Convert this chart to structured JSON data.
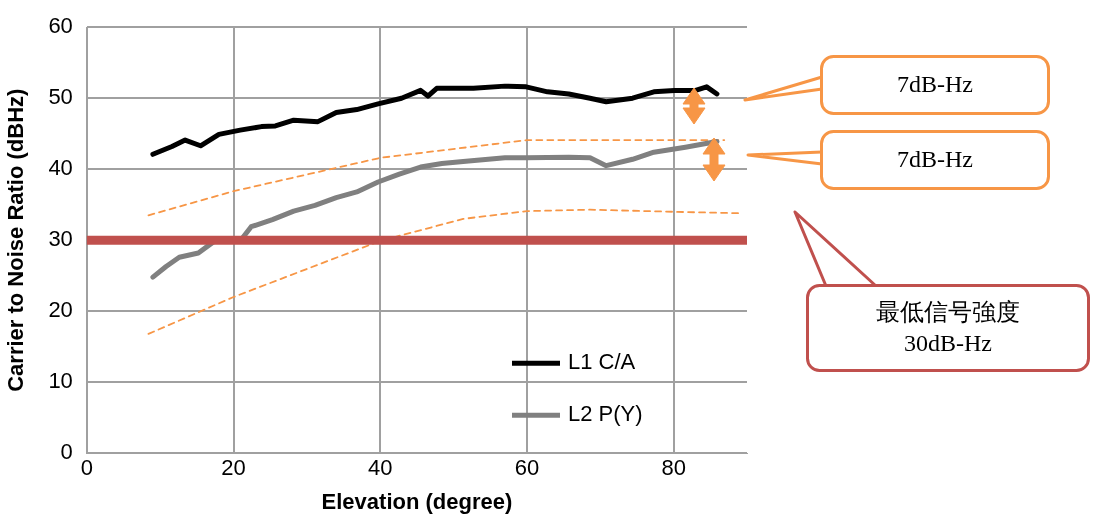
{
  "chart_data": {
    "type": "line",
    "xlabel": "Elevation (degree)",
    "ylabel": "Carrier to Noise Ratio (dBHz)",
    "xlim": [
      0,
      90
    ],
    "xticks": [
      0,
      20,
      40,
      60,
      80
    ],
    "ylim": [
      0,
      60
    ],
    "yticks": [
      0,
      10,
      20,
      30,
      40,
      50,
      60
    ],
    "grid": true,
    "legend": "bottom right",
    "marker": "none",
    "series": [
      {
        "name": "L1 C/A",
        "color": "#000000",
        "x": [
          9,
          11.6,
          13.4,
          15.5,
          18,
          20.9,
          23.8,
          25.7,
          28.2,
          31.5,
          34,
          36.8,
          39.7,
          42.9,
          45.5,
          46.5,
          47.7,
          52.7,
          57,
          59.9,
          62.8,
          65.7,
          68.6,
          70.8,
          74.4,
          77.3,
          80.1,
          83,
          84.5,
          85.9
        ],
        "values": [
          42.1,
          43.2,
          44.1,
          43.3,
          44.9,
          45.5,
          46,
          46.1,
          46.9,
          46.7,
          48,
          48.4,
          49.2,
          50,
          51.1,
          50.3,
          51.4,
          51.4,
          51.7,
          51.6,
          50.9,
          50.6,
          50,
          49.5,
          50,
          50.9,
          51.1,
          51.1,
          51.6,
          50.6
        ]
      },
      {
        "name": "L2 P(Y)",
        "color": "#808080",
        "x": [
          9,
          10.8,
          12.6,
          15.2,
          17.3,
          20.2,
          20.9,
          22.4,
          25.3,
          28.2,
          31.1,
          34,
          36.8,
          39.7,
          42.6,
          45.5,
          48.4,
          51.3,
          57,
          59.9,
          65.7,
          68.6,
          70.8,
          74.4,
          77.3,
          81.6,
          85.9
        ],
        "values": [
          24.8,
          26.3,
          27.6,
          28.2,
          29.8,
          30.2,
          29.9,
          31.9,
          32.9,
          34.1,
          34.9,
          36,
          36.8,
          38.2,
          39.3,
          40.3,
          40.8,
          41.1,
          41.6,
          41.6,
          41.7,
          41.6,
          40.5,
          41.4,
          42.4,
          43.1,
          43.9
        ]
      },
      {
        "color": "#f79646",
        "line_style": "dashed",
        "x": [
          8.4,
          20,
          40,
          60,
          71.5,
          86.9
        ],
        "values": [
          33.5,
          36.9,
          41.6,
          44.1,
          44.1,
          44.1
        ]
      },
      {
        "color": "#f79646",
        "line_style": "dashed",
        "x": [
          8.4,
          20,
          40,
          51.3,
          60,
          68.6,
          80.1,
          89
        ],
        "values": [
          16.8,
          22,
          29.9,
          33,
          34.1,
          34.3,
          34,
          33.8
        ]
      }
    ],
    "ref_lines": [
      {
        "axis": "y",
        "value": 30,
        "color": "#c0504d"
      }
    ],
    "annotations": [
      "7dB-Hz",
      "7dB-Hz",
      "最低信号強度\n30dB-Hz"
    ]
  }
}
